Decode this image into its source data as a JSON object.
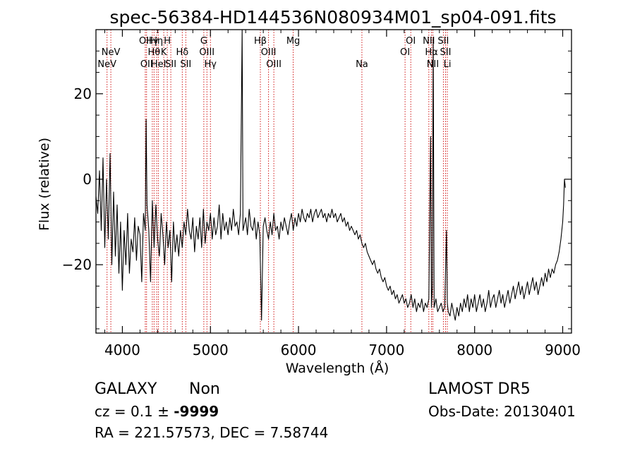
{
  "chart_data": {
    "type": "line",
    "title": "spec-56384-HD144536N080934M01_sp04-091.fits",
    "xlabel": "Wavelength (Å)",
    "ylabel": "Flux (relative)",
    "xlim": [
      3700,
      9100
    ],
    "ylim": [
      -36,
      35
    ],
    "xticks": [
      4000,
      5000,
      6000,
      7000,
      8000,
      9000
    ],
    "yticks": [
      -20,
      0,
      20
    ],
    "grid": false,
    "series": [
      {
        "values": [
          [
            3700,
            -4
          ],
          [
            3720,
            -8
          ],
          [
            3740,
            2
          ],
          [
            3760,
            -12
          ],
          [
            3780,
            5
          ],
          [
            3800,
            -16
          ],
          [
            3820,
            0
          ],
          [
            3840,
            -14
          ],
          [
            3860,
            6
          ],
          [
            3880,
            -20
          ],
          [
            3900,
            -3
          ],
          [
            3920,
            -18
          ],
          [
            3940,
            -6
          ],
          [
            3960,
            -22
          ],
          [
            3980,
            -10
          ],
          [
            4000,
            -26
          ],
          [
            4020,
            -12
          ],
          [
            4040,
            -20
          ],
          [
            4060,
            -8
          ],
          [
            4080,
            -22
          ],
          [
            4100,
            -14
          ],
          [
            4120,
            -17
          ],
          [
            4140,
            -9
          ],
          [
            4160,
            -19
          ],
          [
            4180,
            -11
          ],
          [
            4200,
            -13
          ],
          [
            4220,
            -24
          ],
          [
            4240,
            -8
          ],
          [
            4260,
            -12
          ],
          [
            4270,
            14
          ],
          [
            4280,
            -6
          ],
          [
            4300,
            -12
          ],
          [
            4320,
            -24
          ],
          [
            4340,
            -5
          ],
          [
            4360,
            -16
          ],
          [
            4380,
            -6
          ],
          [
            4400,
            -14
          ],
          [
            4420,
            -18
          ],
          [
            4440,
            -8
          ],
          [
            4460,
            -13
          ],
          [
            4480,
            -20
          ],
          [
            4500,
            -10
          ],
          [
            4520,
            -16
          ],
          [
            4540,
            -12
          ],
          [
            4560,
            -24
          ],
          [
            4580,
            -10
          ],
          [
            4600,
            -17
          ],
          [
            4620,
            -13
          ],
          [
            4640,
            -18
          ],
          [
            4660,
            -12
          ],
          [
            4680,
            -16
          ],
          [
            4700,
            -10
          ],
          [
            4720,
            -13
          ],
          [
            4740,
            -7
          ],
          [
            4760,
            -12
          ],
          [
            4780,
            -14
          ],
          [
            4800,
            -9
          ],
          [
            4820,
            -17
          ],
          [
            4840,
            -11
          ],
          [
            4860,
            -14
          ],
          [
            4880,
            -9
          ],
          [
            4900,
            -16
          ],
          [
            4920,
            -7
          ],
          [
            4940,
            -15
          ],
          [
            4960,
            -10
          ],
          [
            4980,
            -12
          ],
          [
            5000,
            -8
          ],
          [
            5020,
            -14
          ],
          [
            5040,
            -9
          ],
          [
            5060,
            -13
          ],
          [
            5080,
            -11
          ],
          [
            5100,
            -6
          ],
          [
            5120,
            -14
          ],
          [
            5140,
            -8
          ],
          [
            5160,
            -12
          ],
          [
            5180,
            -10
          ],
          [
            5200,
            -13
          ],
          [
            5220,
            -9
          ],
          [
            5240,
            -12
          ],
          [
            5260,
            -7
          ],
          [
            5280,
            -11
          ],
          [
            5300,
            -10
          ],
          [
            5320,
            -13
          ],
          [
            5340,
            -8
          ],
          [
            5360,
            37
          ],
          [
            5370,
            -12
          ],
          [
            5380,
            -11
          ],
          [
            5400,
            -9
          ],
          [
            5420,
            -13
          ],
          [
            5440,
            -7
          ],
          [
            5460,
            -11
          ],
          [
            5480,
            -12
          ],
          [
            5500,
            -9
          ],
          [
            5520,
            -14
          ],
          [
            5540,
            -10
          ],
          [
            5560,
            -13
          ],
          [
            5580,
            -33
          ],
          [
            5600,
            -11
          ],
          [
            5620,
            -9
          ],
          [
            5640,
            -12
          ],
          [
            5660,
            -14
          ],
          [
            5680,
            -10
          ],
          [
            5700,
            -13
          ],
          [
            5720,
            -8
          ],
          [
            5740,
            -12
          ],
          [
            5760,
            -11
          ],
          [
            5780,
            -14
          ],
          [
            5800,
            -10
          ],
          [
            5820,
            -12
          ],
          [
            5840,
            -9
          ],
          [
            5860,
            -11
          ],
          [
            5880,
            -13
          ],
          [
            5900,
            -10
          ],
          [
            5920,
            -8
          ],
          [
            5940,
            -12
          ],
          [
            5960,
            -9
          ],
          [
            5980,
            -11
          ],
          [
            6000,
            -8
          ],
          [
            6020,
            -10
          ],
          [
            6040,
            -7
          ],
          [
            6060,
            -9
          ],
          [
            6080,
            -10
          ],
          [
            6100,
            -8
          ],
          [
            6120,
            -9
          ],
          [
            6140,
            -7
          ],
          [
            6160,
            -10
          ],
          [
            6180,
            -8
          ],
          [
            6200,
            -7
          ],
          [
            6220,
            -9
          ],
          [
            6240,
            -8
          ],
          [
            6260,
            -7
          ],
          [
            6280,
            -9
          ],
          [
            6300,
            -8
          ],
          [
            6320,
            -10
          ],
          [
            6340,
            -8
          ],
          [
            6360,
            -9
          ],
          [
            6380,
            -7
          ],
          [
            6400,
            -9
          ],
          [
            6420,
            -8
          ],
          [
            6440,
            -10
          ],
          [
            6460,
            -9
          ],
          [
            6480,
            -8
          ],
          [
            6500,
            -10
          ],
          [
            6520,
            -9
          ],
          [
            6540,
            -11
          ],
          [
            6560,
            -10
          ],
          [
            6580,
            -12
          ],
          [
            6600,
            -11
          ],
          [
            6620,
            -12
          ],
          [
            6640,
            -13
          ],
          [
            6660,
            -12
          ],
          [
            6680,
            -14
          ],
          [
            6700,
            -13
          ],
          [
            6720,
            -15
          ],
          [
            6740,
            -16
          ],
          [
            6760,
            -15
          ],
          [
            6780,
            -17
          ],
          [
            6800,
            -18
          ],
          [
            6820,
            -19
          ],
          [
            6840,
            -20
          ],
          [
            6860,
            -19
          ],
          [
            6880,
            -21
          ],
          [
            6900,
            -22
          ],
          [
            6920,
            -21
          ],
          [
            6940,
            -23
          ],
          [
            6960,
            -24
          ],
          [
            6980,
            -23
          ],
          [
            7000,
            -25
          ],
          [
            7020,
            -26
          ],
          [
            7040,
            -25
          ],
          [
            7060,
            -27
          ],
          [
            7080,
            -26
          ],
          [
            7100,
            -28
          ],
          [
            7120,
            -27
          ],
          [
            7140,
            -29
          ],
          [
            7160,
            -28
          ],
          [
            7180,
            -27
          ],
          [
            7200,
            -29
          ],
          [
            7220,
            -28
          ],
          [
            7240,
            -30
          ],
          [
            7260,
            -29
          ],
          [
            7280,
            -27
          ],
          [
            7300,
            -30
          ],
          [
            7320,
            -28
          ],
          [
            7340,
            -31
          ],
          [
            7360,
            -29
          ],
          [
            7380,
            -30
          ],
          [
            7400,
            -28
          ],
          [
            7420,
            -31
          ],
          [
            7440,
            -29
          ],
          [
            7460,
            -30
          ],
          [
            7480,
            -28
          ],
          [
            7500,
            10
          ],
          [
            7510,
            -30
          ],
          [
            7520,
            -25
          ],
          [
            7530,
            33
          ],
          [
            7540,
            -30
          ],
          [
            7560,
            -28
          ],
          [
            7580,
            -31
          ],
          [
            7600,
            -30
          ],
          [
            7620,
            -29
          ],
          [
            7640,
            -31
          ],
          [
            7660,
            -30
          ],
          [
            7680,
            -12
          ],
          [
            7690,
            -29
          ],
          [
            7700,
            -31
          ],
          [
            7720,
            -32
          ],
          [
            7740,
            -29
          ],
          [
            7760,
            -31
          ],
          [
            7780,
            -33
          ],
          [
            7800,
            -30
          ],
          [
            7820,
            -32
          ],
          [
            7840,
            -29
          ],
          [
            7860,
            -31
          ],
          [
            7880,
            -28
          ],
          [
            7900,
            -30
          ],
          [
            7920,
            -27
          ],
          [
            7940,
            -31
          ],
          [
            7960,
            -28
          ],
          [
            7980,
            -30
          ],
          [
            8000,
            -27
          ],
          [
            8020,
            -31
          ],
          [
            8040,
            -29
          ],
          [
            8060,
            -27
          ],
          [
            8080,
            -30
          ],
          [
            8100,
            -28
          ],
          [
            8120,
            -31
          ],
          [
            8140,
            -29
          ],
          [
            8160,
            -26
          ],
          [
            8180,
            -30
          ],
          [
            8200,
            -28
          ],
          [
            8220,
            -27
          ],
          [
            8240,
            -30
          ],
          [
            8260,
            -28
          ],
          [
            8280,
            -26
          ],
          [
            8300,
            -29
          ],
          [
            8320,
            -27
          ],
          [
            8340,
            -30
          ],
          [
            8360,
            -28
          ],
          [
            8380,
            -26
          ],
          [
            8400,
            -29
          ],
          [
            8420,
            -27
          ],
          [
            8440,
            -25
          ],
          [
            8460,
            -28
          ],
          [
            8480,
            -26
          ],
          [
            8500,
            -24
          ],
          [
            8520,
            -27
          ],
          [
            8540,
            -25
          ],
          [
            8560,
            -28
          ],
          [
            8580,
            -26
          ],
          [
            8600,
            -24
          ],
          [
            8620,
            -27
          ],
          [
            8640,
            -25
          ],
          [
            8660,
            -23
          ],
          [
            8680,
            -26
          ],
          [
            8700,
            -24
          ],
          [
            8720,
            -27
          ],
          [
            8740,
            -25
          ],
          [
            8760,
            -23
          ],
          [
            8780,
            -25
          ],
          [
            8800,
            -22
          ],
          [
            8820,
            -24
          ],
          [
            8840,
            -21
          ],
          [
            8860,
            -23
          ],
          [
            8880,
            -21
          ],
          [
            8900,
            -22
          ],
          [
            8920,
            -20
          ],
          [
            8940,
            -19
          ],
          [
            8960,
            -17
          ],
          [
            8980,
            -14
          ],
          [
            9000,
            -10
          ],
          [
            9010,
            -6
          ],
          [
            9020,
            0
          ],
          [
            9030,
            -2
          ]
        ]
      }
    ],
    "lines": [
      {
        "wl": 3826,
        "label": "NeV",
        "row": 3
      },
      {
        "wl": 3869,
        "label": "NeV",
        "row": 2
      },
      {
        "wl": 4260,
        "label": "OII",
        "row": 1
      },
      {
        "wl": 4275,
        "label": "OII",
        "row": 3
      },
      {
        "wl": 4340,
        "label": "Hγ",
        "row": 1
      },
      {
        "wl": 4360,
        "label": "Hθ",
        "row": 2
      },
      {
        "wl": 4390,
        "label": "Hη",
        "row": 1
      },
      {
        "wl": 4410,
        "label": "HeI",
        "row": 3
      },
      {
        "wl": 4470,
        "label": "K",
        "row": 2
      },
      {
        "wl": 4510,
        "label": "H",
        "row": 1
      },
      {
        "wl": 4550,
        "label": "SII",
        "row": 3
      },
      {
        "wl": 4680,
        "label": "Hδ",
        "row": 2
      },
      {
        "wl": 4720,
        "label": "SII",
        "row": 3
      },
      {
        "wl": 4925,
        "label": "G",
        "row": 1
      },
      {
        "wl": 4960,
        "label": "OIII",
        "row": 2
      },
      {
        "wl": 5000,
        "label": "Hγ",
        "row": 3
      },
      {
        "wl": 5567,
        "label": "Hβ",
        "row": 1
      },
      {
        "wl": 5660,
        "label": "OIII",
        "row": 2
      },
      {
        "wl": 5720,
        "label": "OIII",
        "row": 3
      },
      {
        "wl": 5940,
        "label": "Mg",
        "row": 1
      },
      {
        "wl": 6720,
        "label": "Na",
        "row": 3
      },
      {
        "wl": 7210,
        "label": "OI",
        "row": 2
      },
      {
        "wl": 7275,
        "label": "OI",
        "row": 1
      },
      {
        "wl": 7480,
        "label": "NII",
        "row": 1
      },
      {
        "wl": 7510,
        "label": "Hα",
        "row": 2
      },
      {
        "wl": 7525,
        "label": "NII",
        "row": 3
      },
      {
        "wl": 7645,
        "label": "SII",
        "row": 1
      },
      {
        "wl": 7670,
        "label": "SII",
        "row": 2
      },
      {
        "wl": 7690,
        "label": "Li",
        "row": 3
      }
    ]
  },
  "info": {
    "class": "GALAXY",
    "subclass": "Non",
    "cz": "cz = 0.1 ± ",
    "cz_err": "-9999",
    "coords": "RA = 221.57573, DEC =   7.58744",
    "survey": "LAMOST DR5",
    "obsdate": "Obs-Date: 20130401"
  },
  "colors": {
    "spectrum": "#000000",
    "lines": "#cc0000",
    "axes": "#000000"
  }
}
